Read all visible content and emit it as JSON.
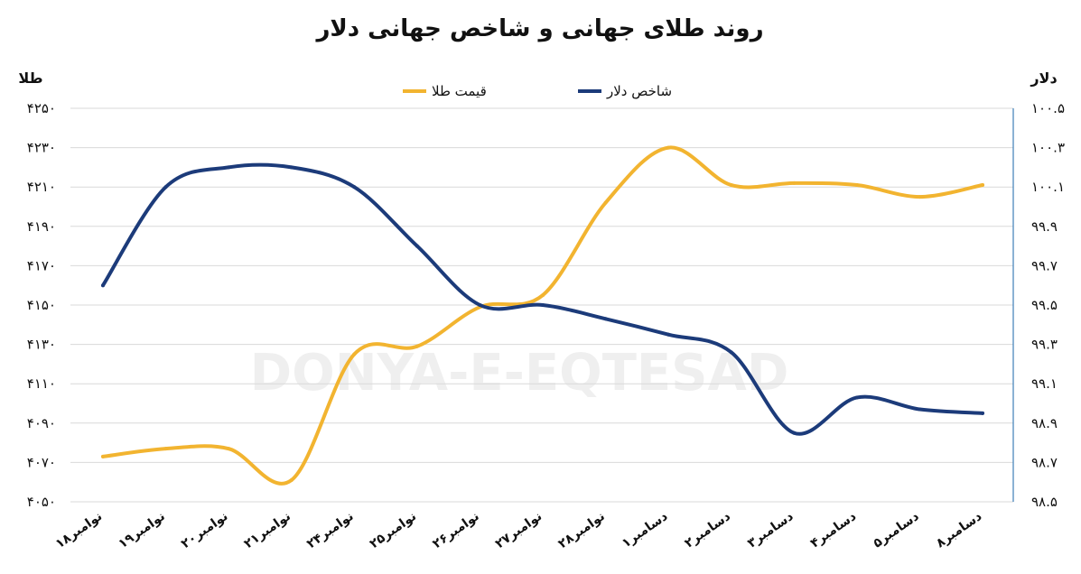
{
  "chart_data": {
    "type": "line",
    "title": "روند طلای جهانی و شاخص جهانی دلار",
    "watermark": "DONYA-E-EQTESAD",
    "y_left_label": "طلا",
    "y_right_label": "دلار",
    "y_left_ticks": [
      "۴۰۵۰",
      "۴۰۷۰",
      "۴۰۹۰",
      "۴۱۱۰",
      "۴۱۳۰",
      "۴۱۵۰",
      "۴۱۷۰",
      "۴۱۹۰",
      "۴۲۱۰",
      "۴۲۳۰",
      "۴۲۵۰"
    ],
    "y_right_ticks": [
      "۹۸.۵",
      "۹۸.۷",
      "۹۸.۹",
      "۹۹.۱",
      "۹۹.۳",
      "۹۹.۵",
      "۹۹.۷",
      "۹۹.۹",
      "۱۰۰.۱",
      "۱۰۰.۳",
      "۱۰۰.۵"
    ],
    "y_left_range": [
      4050,
      4250
    ],
    "y_right_range": [
      98.5,
      100.5
    ],
    "categories": [
      "۱۸نوامبر",
      "۱۹نوامبر",
      "۲۰نوامبر",
      "۲۱نوامبر",
      "۲۴نوامبر",
      "۲۵نوامبر",
      "۲۶نوامبر",
      "۲۷نوامبر",
      "۲۸نوامبر",
      "۱دسامبر",
      "۲دسامبر",
      "۳دسامبر",
      "۴دسامبر",
      "۵دسامبر",
      "۸دسامبر"
    ],
    "legend_position": "top-center",
    "grid": true,
    "series": [
      {
        "name": "قیمت طلا",
        "axis": "left",
        "color": "#f2b430",
        "values": [
          4073,
          4077,
          4077,
          4061,
          4125,
          4129,
          4149,
          4155,
          4202,
          4230,
          4211,
          4212,
          4211,
          4205,
          4211
        ]
      },
      {
        "name": "شاخص دلار",
        "axis": "right",
        "color": "#1c3b7a",
        "values": [
          99.6,
          100.1,
          100.2,
          100.2,
          100.1,
          99.8,
          99.5,
          99.5,
          99.43,
          99.35,
          99.26,
          98.85,
          99.03,
          98.97,
          98.95
        ]
      }
    ]
  }
}
